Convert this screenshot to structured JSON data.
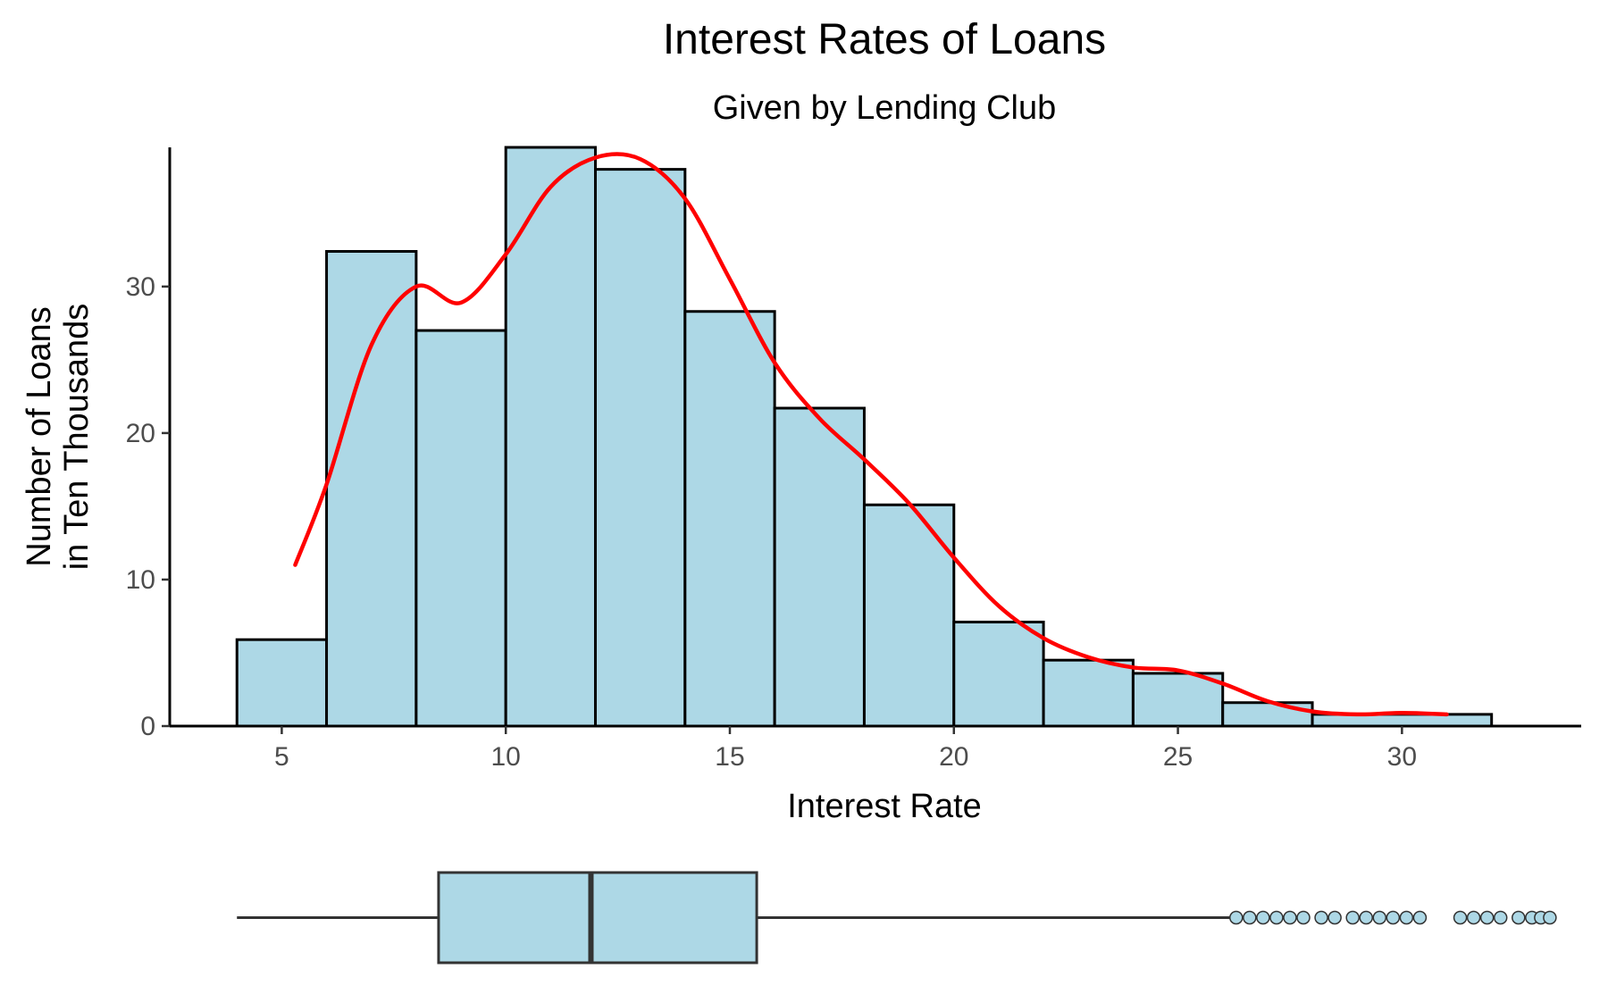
{
  "chart_data": {
    "type": "histogram",
    "title": "Interest Rates of Loans",
    "subtitle": "Given by Lending Club",
    "xlabel": "Interest Rate",
    "ylabel": "Number of Loans\nin Ten Thousands",
    "xlim": [
      2.5,
      34.0
    ],
    "ylim": [
      0,
      39.5
    ],
    "x_ticks": [
      5,
      10,
      15,
      20,
      25,
      30
    ],
    "y_ticks": [
      0,
      10,
      20,
      30
    ],
    "bin_width": 2,
    "bins": [
      {
        "start": 4,
        "end": 6,
        "count": 5.9
      },
      {
        "start": 6,
        "end": 8,
        "count": 32.4
      },
      {
        "start": 8,
        "end": 10,
        "count": 27.0
      },
      {
        "start": 10,
        "end": 12,
        "count": 39.5
      },
      {
        "start": 12,
        "end": 14,
        "count": 38.0
      },
      {
        "start": 14,
        "end": 16,
        "count": 28.3
      },
      {
        "start": 16,
        "end": 18,
        "count": 21.7
      },
      {
        "start": 18,
        "end": 20,
        "count": 15.1
      },
      {
        "start": 20,
        "end": 22,
        "count": 7.1
      },
      {
        "start": 22,
        "end": 24,
        "count": 4.5
      },
      {
        "start": 24,
        "end": 26,
        "count": 3.6
      },
      {
        "start": 26,
        "end": 28,
        "count": 1.6
      },
      {
        "start": 28,
        "end": 32,
        "count": 0.8
      }
    ],
    "density_curve": {
      "color": "#ff0000",
      "points": [
        [
          5.3,
          11.0
        ],
        [
          6.0,
          16.5
        ],
        [
          7.0,
          26.0
        ],
        [
          8.0,
          30.0
        ],
        [
          9.0,
          28.9
        ],
        [
          10.0,
          32.2
        ],
        [
          11.0,
          36.8
        ],
        [
          12.0,
          38.8
        ],
        [
          13.0,
          38.7
        ],
        [
          14.0,
          36.0
        ],
        [
          15.0,
          30.5
        ],
        [
          16.0,
          24.8
        ],
        [
          17.0,
          21.0
        ],
        [
          18.0,
          18.2
        ],
        [
          19.0,
          15.2
        ],
        [
          20.0,
          11.5
        ],
        [
          21.0,
          8.2
        ],
        [
          22.0,
          6.0
        ],
        [
          23.0,
          4.7
        ],
        [
          24.0,
          4.0
        ],
        [
          25.0,
          3.8
        ],
        [
          26.0,
          2.9
        ],
        [
          27.0,
          1.7
        ],
        [
          28.0,
          1.0
        ],
        [
          29.0,
          0.8
        ],
        [
          30.0,
          0.9
        ],
        [
          31.0,
          0.8
        ]
      ]
    },
    "boxplot": {
      "whisker_low": 4.0,
      "q1": 8.5,
      "median": 11.9,
      "q3": 15.6,
      "whisker_high": 26.2,
      "outliers": [
        26.3,
        26.6,
        26.9,
        27.2,
        27.5,
        27.8,
        28.2,
        28.5,
        28.9,
        29.2,
        29.5,
        29.8,
        30.1,
        30.4,
        31.3,
        31.6,
        31.9,
        32.2,
        32.6,
        32.9,
        33.1,
        33.3
      ]
    },
    "colors": {
      "bar_fill": "#add8e6",
      "bar_stroke": "#000000",
      "box_stroke": "#333333"
    },
    "grid": false,
    "legend": "none"
  }
}
